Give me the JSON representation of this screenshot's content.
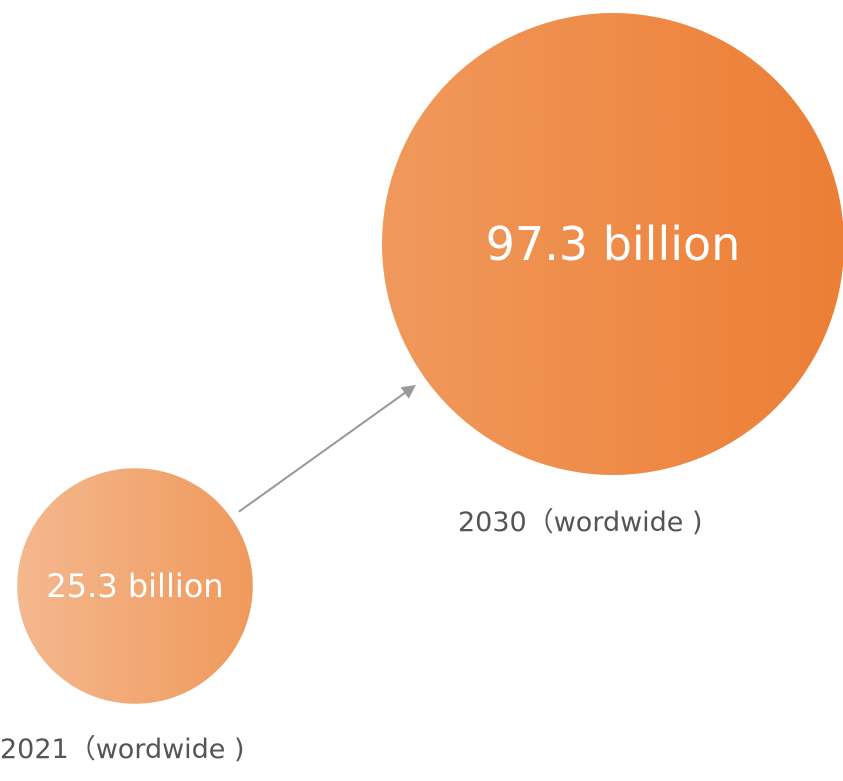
{
  "chart_data": {
    "type": "bubble",
    "title": "",
    "colors": {
      "bubble_light": "#f4b88e",
      "bubble_mid": "#f0995c",
      "bubble_dark": "#ec7e35",
      "arrow": "#999999",
      "caption": "#555555"
    },
    "points": [
      {
        "year": 2021,
        "value": 25.3,
        "unit": "billion",
        "value_label": "25.3 billion",
        "caption": "2021（wordwide )"
      },
      {
        "year": 2030,
        "value": 97.3,
        "unit": "billion",
        "value_label": "97.3 billion",
        "caption": "2030（wordwide )"
      }
    ],
    "connector": {
      "from_year": 2021,
      "to_year": 2030,
      "style": "arrow"
    }
  }
}
